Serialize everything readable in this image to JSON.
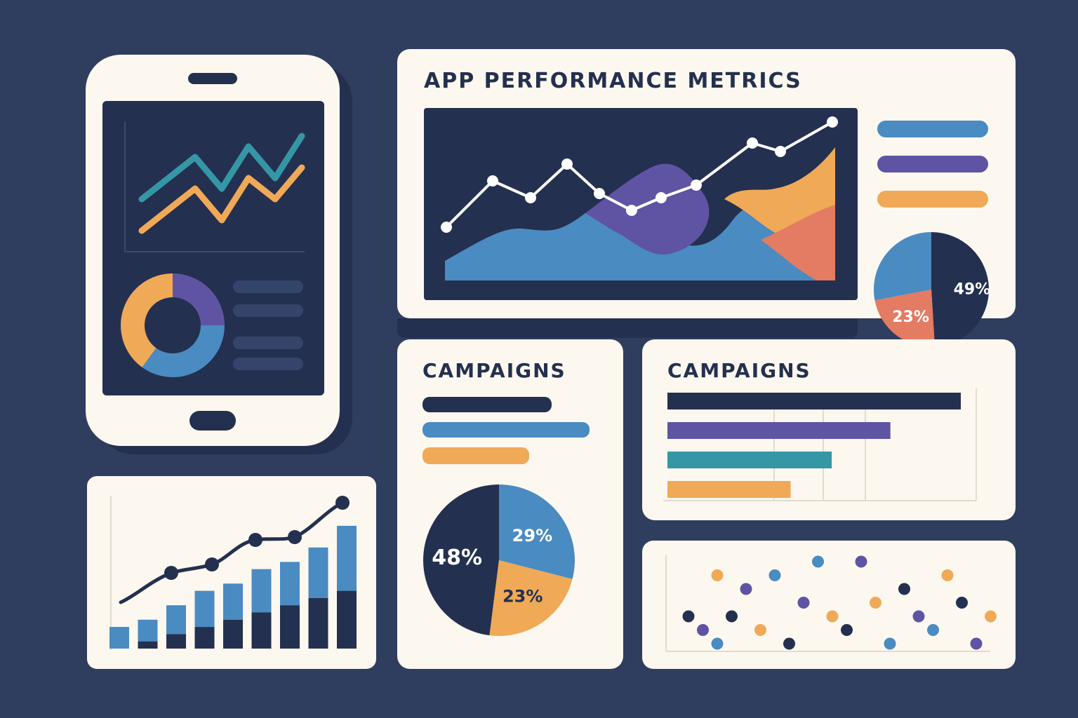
{
  "colors": {
    "background": "#2f3d5f",
    "card": "#fcf8ef",
    "navy": "#24304f",
    "blue": "#4a8bc1",
    "purple": "#5f54a3",
    "orange": "#f0a957",
    "teal": "#3596a6",
    "coral": "#e47b63",
    "white": "#ffffff"
  },
  "phone": {
    "screen_placeholder_rows": 4
  },
  "metrics_panel": {
    "title": "APP PERFORMANCE METRICS"
  },
  "metrics_pie": {
    "labels": [
      "49%",
      "23%"
    ]
  },
  "campaigns_left": {
    "title": "CAMPAIGNS",
    "pie_labels": [
      "48%",
      "29%",
      "23%"
    ]
  },
  "campaigns_right": {
    "title": "CAMPAIGNS"
  },
  "chart_data": [
    {
      "type": "line",
      "name": "phone-line-chart",
      "series": [
        {
          "color": "teal",
          "values": [
            4,
            6,
            8,
            5,
            9,
            6,
            10
          ]
        },
        {
          "color": "orange",
          "values": [
            1,
            3,
            5,
            2,
            6,
            4,
            7
          ]
        }
      ]
    },
    {
      "type": "pie",
      "name": "phone-donut",
      "values": [
        25,
        35,
        40
      ],
      "colors": [
        "purple",
        "blue",
        "orange"
      ]
    },
    {
      "type": "area",
      "name": "metrics-area-line",
      "line_values": [
        1.5,
        2.6,
        2.2,
        3.0,
        2.3,
        1.9,
        2.2,
        2.5,
        3.5,
        3.3,
        4.0
      ],
      "areas": [
        "blue",
        "purple",
        "orange",
        "coral"
      ]
    },
    {
      "type": "pie",
      "name": "metrics-pie",
      "values": [
        49,
        23,
        28
      ],
      "labels": [
        "49%",
        "23%",
        ""
      ],
      "colors": [
        "navy",
        "coral",
        "blue"
      ]
    },
    {
      "type": "pie",
      "name": "campaigns-pie",
      "values": [
        48,
        29,
        23
      ],
      "labels": [
        "48%",
        "29%",
        "23%"
      ],
      "colors": [
        "navy",
        "blue",
        "orange"
      ]
    },
    {
      "type": "bar",
      "name": "campaigns-horizontal-bars",
      "values": [
        100,
        76,
        56,
        42
      ],
      "colors": [
        "navy",
        "purple",
        "teal",
        "orange"
      ]
    },
    {
      "type": "bar",
      "name": "growth-stacked-bars",
      "series": [
        {
          "color": "navy",
          "values": [
            0,
            1,
            2,
            3,
            4,
            5,
            6,
            7,
            8
          ]
        },
        {
          "color": "blue",
          "values": [
            3,
            3,
            4,
            5,
            5,
            6,
            6,
            7,
            9
          ]
        }
      ],
      "line_values": [
        1,
        3,
        4,
        5,
        7,
        7.5,
        10
      ]
    },
    {
      "type": "scatter",
      "name": "dots-scatter",
      "points": [
        [
          1,
          5
        ],
        [
          2,
          6
        ],
        [
          3,
          7
        ],
        [
          3,
          2
        ],
        [
          4,
          5
        ],
        [
          5,
          3
        ],
        [
          6,
          6
        ],
        [
          7,
          2
        ],
        [
          8,
          7
        ],
        [
          9,
          4
        ],
        [
          10,
          1
        ],
        [
          11,
          5
        ],
        [
          12,
          6
        ],
        [
          13,
          1
        ],
        [
          14,
          4
        ],
        [
          15,
          7
        ],
        [
          16,
          3
        ],
        [
          17,
          5
        ],
        [
          18,
          6
        ],
        [
          19,
          2
        ],
        [
          20,
          4
        ],
        [
          21,
          7
        ],
        [
          22,
          5
        ]
      ]
    }
  ]
}
